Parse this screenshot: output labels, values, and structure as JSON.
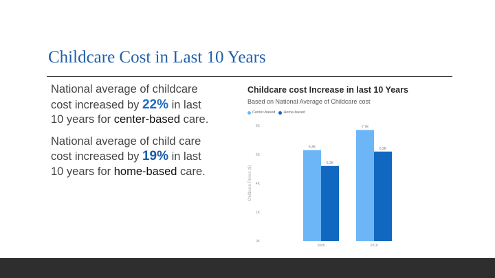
{
  "slide": {
    "title": "Childcare Cost in Last 10 Years"
  },
  "bullets": [
    {
      "before": "National average of childcare cost increased by ",
      "highlight": "22%",
      "middle": " in last 10 years for ",
      "emphasis": "center-based",
      "after": " care."
    },
    {
      "before": "National average of child care cost increased by ",
      "highlight": "19%",
      "middle": " in last 10 years for ",
      "emphasis": "home-based",
      "after": " care."
    }
  ],
  "colors": {
    "center_based": "#6cb6f8",
    "home_based": "#1168c0",
    "title": "#1f5fa9",
    "footer": "#2e2e2e"
  },
  "chart_data": {
    "type": "bar",
    "title": "Childcare cost Increase in last 10 Years",
    "subtitle": "Based on National Average of Childcare cost",
    "ylabel": "Childcare Prices ($)",
    "xlabel": "",
    "categories": [
      "2008",
      "2018"
    ],
    "series": [
      {
        "name": "Center-based",
        "values": [
          6300,
          7700
        ],
        "labels": [
          "6.3K",
          "7.7K"
        ]
      },
      {
        "name": "Home-based",
        "values": [
          5200,
          6200
        ],
        "labels": [
          "5.2K",
          "6.2K"
        ]
      }
    ],
    "ylim": [
      0,
      8000
    ],
    "yticks": [
      0,
      2000,
      4000,
      6000,
      8000
    ],
    "ytick_labels": [
      "0K",
      "2K",
      "4K",
      "6K",
      "8K"
    ],
    "grid": false,
    "legend": "top-left"
  }
}
